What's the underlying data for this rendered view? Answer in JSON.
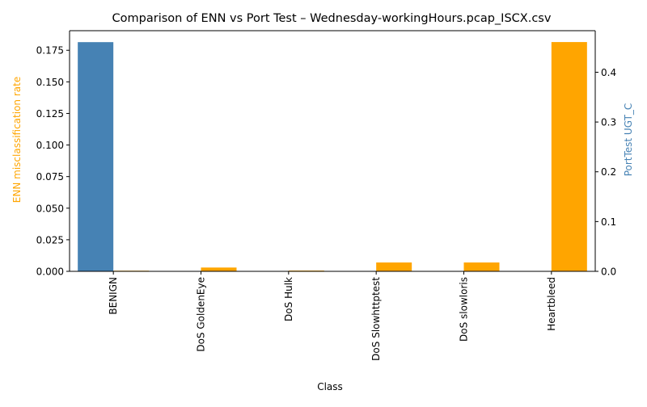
{
  "chart_data": {
    "type": "bar",
    "title": "Comparison of ENN vs Port Test – Wednesday-workingHours.pcap_ISCX.csv",
    "xlabel": "Class",
    "categories": [
      "BENIGN",
      "DoS GoldenEye",
      "DoS Hulk",
      "DoS Slowhttptest",
      "DoS slowloris",
      "Heartbleed"
    ],
    "y_left": {
      "label": "ENN misclassification rate",
      "color": "#ffa500",
      "ylim": [
        0,
        0.1905
      ],
      "ticks": [
        0.0,
        0.025,
        0.05,
        0.075,
        0.1,
        0.125,
        0.15,
        0.175
      ],
      "tick_labels": [
        "0.000",
        "0.025",
        "0.050",
        "0.075",
        "0.100",
        "0.125",
        "0.150",
        "0.175"
      ]
    },
    "y_right": {
      "label": "PortTest UGT_C",
      "color": "#4682b4",
      "ylim": [
        0,
        0.4835
      ],
      "ticks": [
        0.0,
        0.1,
        0.2,
        0.3,
        0.4
      ],
      "tick_labels": [
        "0.0",
        "0.1",
        "0.2",
        "0.3",
        "0.4"
      ]
    },
    "series": [
      {
        "name": "ENN misclassification rate",
        "axis": "left",
        "color": "#ffa500",
        "values": [
          0.0005,
          0.003,
          0.0006,
          0.007,
          0.007,
          0.1815
        ]
      },
      {
        "name": "PortTest UGT_C",
        "axis": "right",
        "color": "#4682b4",
        "values": [
          0.4605,
          0,
          0,
          0,
          0,
          0
        ]
      }
    ],
    "grid": false,
    "legend": "none"
  }
}
